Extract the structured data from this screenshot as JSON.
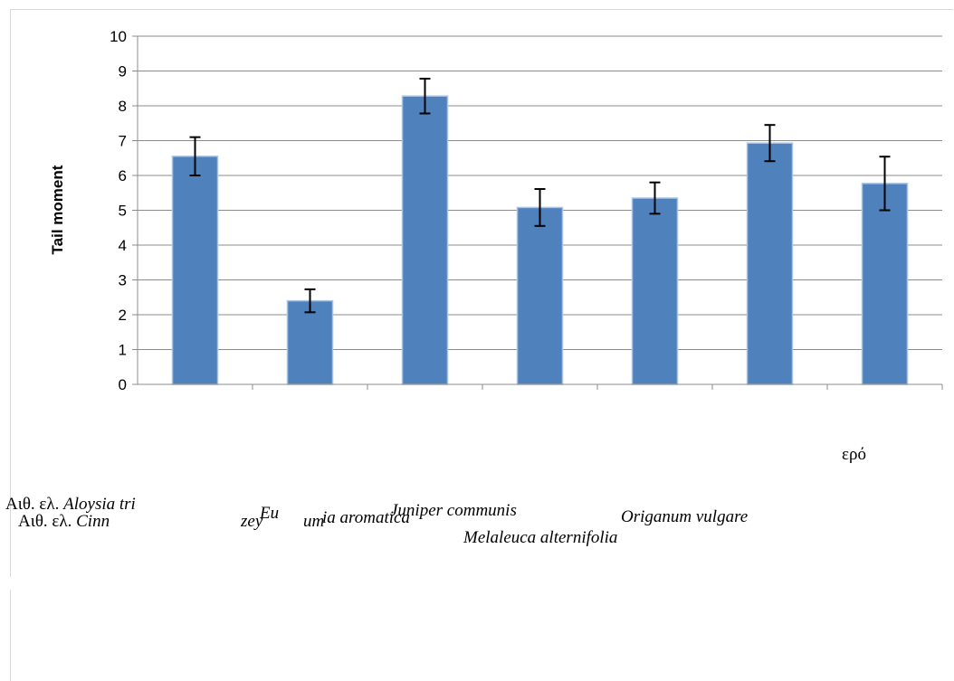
{
  "chart_data": {
    "type": "bar",
    "ylabel": "Tail moment",
    "ylim": [
      0,
      10
    ],
    "yticks": [
      "0",
      "1",
      "2",
      "3",
      "4",
      "5",
      "6",
      "7",
      "8",
      "9",
      "10"
    ],
    "grid": true,
    "bar_color": "#4F81BD",
    "categories": [
      "Αιθ. ελ. Aloysia tri",
      "Αιθ. ελ. Cinn zey um",
      "Eu ia aromatica",
      "Juniper communis",
      "Melaleuca alternifolia",
      "Origanum vulgare",
      "ερό"
    ],
    "values": [
      6.55,
      2.4,
      8.28,
      5.08,
      5.35,
      6.93,
      5.77
    ],
    "errors": [
      0.55,
      0.33,
      0.5,
      0.53,
      0.45,
      0.52,
      0.77
    ]
  },
  "labels": {
    "cat1_prefix": "Αιθ. ελ. ",
    "cat1_name": "Aloysia tri",
    "cat2_prefix": "Αιθ. ελ. ",
    "cat2_name": "Cinn",
    "cat2_tail1": "zey",
    "cat2_tail2": "um",
    "cat3_a": "Eu",
    "cat3_b": "ia aromatica",
    "cat4": "Juniper communis",
    "cat5": "Melaleuca alternifolia",
    "cat6": "Origanum vulgare",
    "cat7": "ερό"
  }
}
